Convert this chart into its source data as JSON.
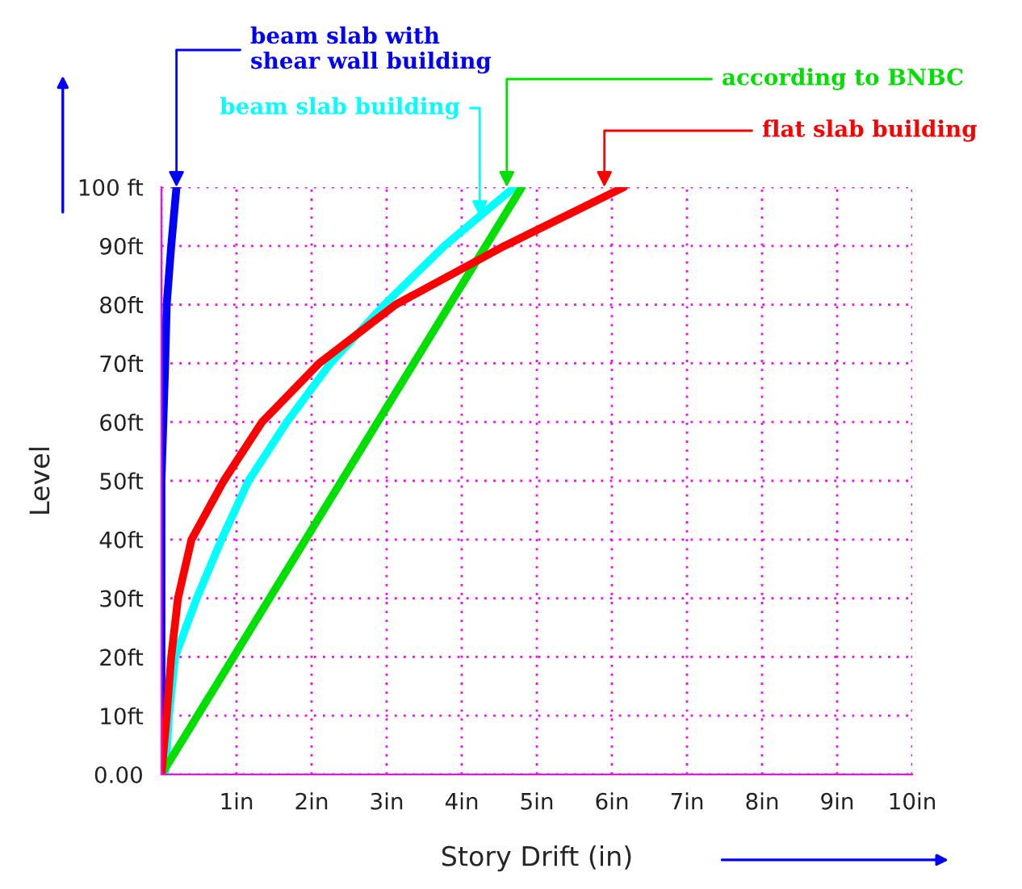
{
  "chart_data": {
    "type": "line",
    "xlabel": "Story Drift (in)",
    "ylabel": "Level",
    "xlim": [
      0,
      10
    ],
    "ylim": [
      0,
      100
    ],
    "xticks": [
      {
        "value": 0,
        "label": null
      },
      {
        "value": 1,
        "label": "1in"
      },
      {
        "value": 2,
        "label": "2in"
      },
      {
        "value": 3,
        "label": "3in"
      },
      {
        "value": 4,
        "label": "4in"
      },
      {
        "value": 5,
        "label": "5in"
      },
      {
        "value": 6,
        "label": "6in"
      },
      {
        "value": 7,
        "label": "7in"
      },
      {
        "value": 8,
        "label": "8in"
      },
      {
        "value": 9,
        "label": "9in"
      },
      {
        "value": 10,
        "label": "10in"
      }
    ],
    "yticks": [
      {
        "value": 0,
        "label": "0.00"
      },
      {
        "value": 10,
        "label": "10ft"
      },
      {
        "value": 20,
        "label": "20ft"
      },
      {
        "value": 30,
        "label": "30ft"
      },
      {
        "value": 40,
        "label": "40ft"
      },
      {
        "value": 50,
        "label": "50ft"
      },
      {
        "value": 60,
        "label": "60ft"
      },
      {
        "value": 70,
        "label": "70ft"
      },
      {
        "value": 80,
        "label": "80ft"
      },
      {
        "value": 90,
        "label": "90ft"
      },
      {
        "value": 100,
        "label": "100 ft"
      }
    ],
    "grid": true,
    "legend": false,
    "marker": "none",
    "line_style": "solid",
    "series": [
      {
        "color": "#0000ff",
        "x": [
          0,
          0,
          0.05,
          0.07,
          0.13,
          0.2
        ],
        "values": [
          0,
          50,
          70,
          80,
          90,
          100
        ]
      },
      {
        "color": "#00ffff",
        "x": [
          0.05,
          0.1,
          0.18,
          0.47,
          0.8,
          1.16,
          1.67,
          2.25,
          2.97,
          3.77,
          4.7
        ],
        "values": [
          0,
          10,
          20,
          30,
          40,
          50,
          60,
          70,
          80,
          90,
          100
        ]
      },
      {
        "color": "#00e000",
        "x": [
          0,
          4.8
        ],
        "values": [
          0,
          100
        ]
      },
      {
        "color": "#ff0000",
        "x": [
          0,
          0.07,
          0.13,
          0.22,
          0.4,
          0.83,
          1.34,
          2.1,
          3.12,
          4.57,
          6.16
        ],
        "values": [
          0,
          10,
          20,
          30,
          40,
          50,
          60,
          70,
          80,
          90,
          100
        ]
      }
    ],
    "annotations": [
      {
        "text": "beam slab with\nshear wall building",
        "x": 0.2,
        "y": 100
      },
      {
        "text": "beam slab building",
        "x": 4.24,
        "y": 95
      },
      {
        "text": "according to BNBC",
        "x": 4.6,
        "y": 100
      },
      {
        "text": "flat slab building",
        "x": 5.9,
        "y": 100
      }
    ]
  }
}
